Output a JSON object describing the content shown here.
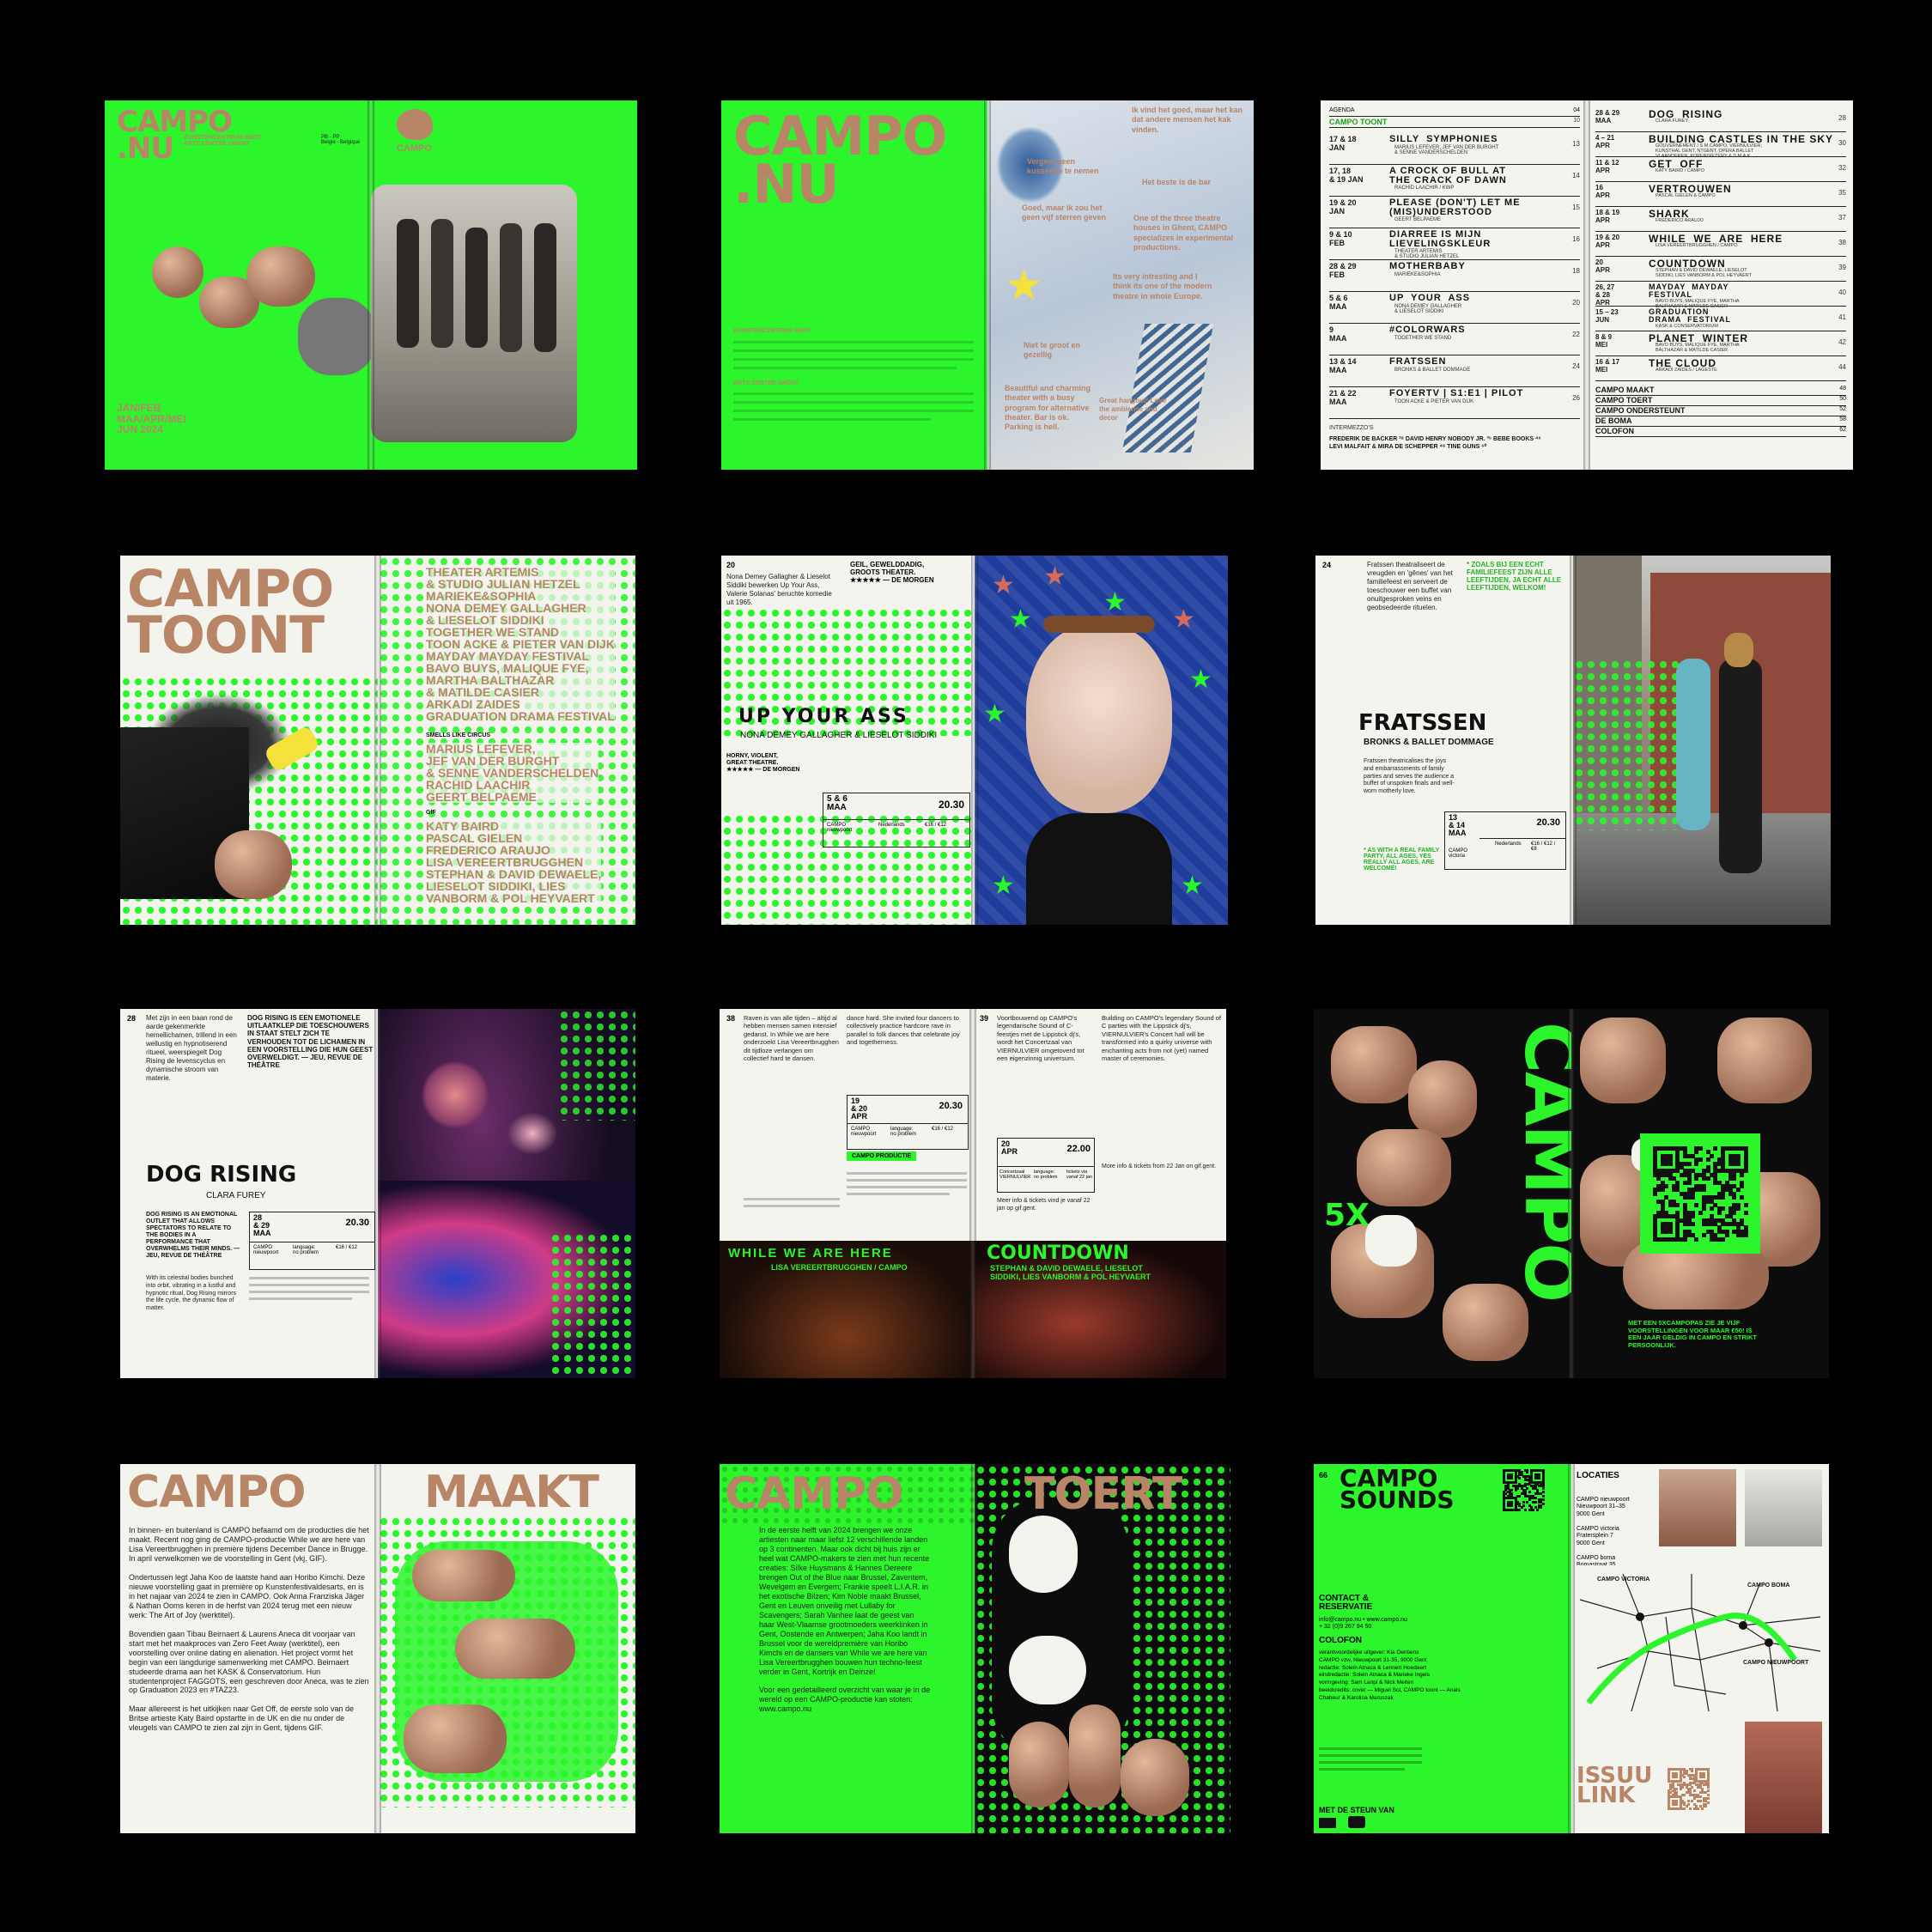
{
  "colors": {
    "green": "#2cf52c",
    "copper": "#b88567",
    "black": "#000000",
    "paper": "#f4f4ef"
  },
  "s1": {
    "logo": "CAMPO\n.NU",
    "tagline": "KUNSTENCENTRUM GENT\nARTS CENTRE GHENT",
    "pb": "PB - PP\nBelgie - Belgique",
    "brand": "CAMPO",
    "dates": "JAN/FEB\nMAA/APR/MEI\nJUN 2024"
  },
  "s2": {
    "logo": "CAMPO\n.NU",
    "reviews": [
      "Ik vind het goed, maar het kan dat andere mensen het kak vinden.",
      "Vergeet geen kussentje te nemen",
      "Het beste is de bar",
      "Goed, maar ik zou het geen vijf sterren geven",
      "One of the three theatre houses in Ghent, CAMPO specializes in experimental productions.",
      "Its very intresting and I think its one of the modern theatre in whole Europe.",
      "Niet te groot en gezellig",
      "Beautiful and charming theater with a busy program for alternative theater. Bar is ok. Parking is hell.",
      "Great hangout! Love the ambience and decor"
    ],
    "intro_title": "KUNSTENCENTRUM GENT",
    "intro_title_en": "ARTS CENTRE GHENT"
  },
  "s3": {
    "toc": [
      {
        "label": "AGENDA",
        "page": "04"
      },
      {
        "label": "CAMPO TOONT",
        "page": "10"
      }
    ],
    "left": [
      {
        "date": "17 & 18\nJAN",
        "title": "SILLY  SYMPHONIES",
        "sub": "MARIUS LEFEVER, JEF VAN DER BURGHT\n& SENNE VANDERSCHELDEN",
        "page": "13"
      },
      {
        "date": "17, 18\n& 19 JAN",
        "title": "A CROCK OF BULL AT\nTHE CRACK OF DAWN",
        "sub": "RACHID LAACHIR / KWP",
        "page": "14"
      },
      {
        "date": "19 & 20\nJAN",
        "title": "PLEASE (DON'T) LET ME\n(MIS)UNDERSTOOD",
        "sub": "GEERT BELPAEME",
        "page": "15"
      },
      {
        "date": "9 & 10\nFEB",
        "title": "DIARREE IS MIJN\nLIEVELINGSKLEUR",
        "sub": "THEATER ARTEMIS\n& STUDIO JULIAN HETZEL",
        "page": "16"
      },
      {
        "date": "28 & 29\nFEB",
        "title": "MOTHERBABY",
        "sub": "MARIEKE&SOPHIA",
        "page": "18"
      },
      {
        "date": "5 & 6\nMAA",
        "title": "UP  YOUR  ASS",
        "sub": "NONA DEMEY GALLAGHER\n& LIESELOT SIDDIKI",
        "page": "20"
      },
      {
        "date": "9\nMAA",
        "title": "#COLORWARS",
        "sub": "TOGETHER WE STAND",
        "page": "22"
      },
      {
        "date": "13 & 14\nMAA",
        "title": "FRATSSEN",
        "sub": "BRONKS & BALLET DOMMAGE",
        "page": "24"
      },
      {
        "date": "21 & 22\nMAA",
        "title": "FOYERTV | S1:E1 | PILOT",
        "sub": "TOON ACKE & PIETER VAN DIJK",
        "page": "26"
      }
    ],
    "intermezzo_label": "INTERMEZZO'S",
    "intermezzo": "FREDERIK DE BACKER ²⁸ DAVID HENRY NOBODY JR. ³⁶ BEBE BOOKS ⁴⁶\nLEVI MALFAIT & MIRA DE SCHEPPER ⁴⁸ TINE GUNS ⁶⁰",
    "right": [
      {
        "date": "28 & 29\nMAA",
        "title": "DOG  RISING",
        "sub": "CLARA FUREY",
        "page": "28"
      },
      {
        "date": "4 – 21\nAPR",
        "title": "BUILDING CASTLES IN THE SKY",
        "sub": "GOUVERNEMENT / S.M.CAMPO, VIERNULVIER,\nKUNSTHAL GENT, NTGENT, OPERA BALLET\nVLAANDEREN, KOPERGIETERY & S.M.A.K.",
        "page": "30"
      },
      {
        "date": "11 & 12\nAPR",
        "title": "GET  OFF",
        "sub": "KATY BAIRD / CAMPO",
        "page": "32"
      },
      {
        "date": "16\nAPR",
        "title": "VERTROUWEN",
        "sub": "PASCAL GIELEN & CAMPO",
        "page": "35"
      },
      {
        "date": "18 & 19\nAPR",
        "title": "SHARK",
        "sub": "FREDERICO ARAUJO",
        "page": "37"
      },
      {
        "date": "19 & 20\nAPR",
        "title": "WHILE  WE  ARE  HERE",
        "sub": "LISA VEREERTBRUGGHEN / CAMPO",
        "page": "38"
      },
      {
        "date": "20\nAPR",
        "title": "COUNTDOWN",
        "sub": "STEPHAN & DAVID DEWAELE, LIESELOT\nSIDDIKI, LIES VANBORM & POL HEYVAERT",
        "page": "39"
      },
      {
        "date": "26, 27\n& 28\nAPR",
        "title": "MAYDAY  MAYDAY\nFESTIVAL",
        "sub": "BAVO BUYS, MALIQUE FYE, MARTHA\nBALTHAZAR & MATILDE CASIER",
        "page": "40"
      },
      {
        "date": "15 – 23\nJUN",
        "title": "GRADUATION\nDRAMA  FESTIVAL",
        "sub": "KASK & CONSERVATORIUM",
        "page": "41"
      },
      {
        "date": "8 & 9\nMEI",
        "title": "PLANET  WINTER",
        "sub": "BAVO BUYS, MALIQUE FYE, MARTHA\nBALTHAZAR & MATILDE CASIER",
        "page": "42"
      },
      {
        "date": "16 & 17\nMEI",
        "title": "THE CLOUD",
        "sub": "ARKADI ZAIDES / LAGESTE",
        "page": "44"
      }
    ],
    "bottom": [
      {
        "label": "CAMPO MAAKT",
        "page": "48"
      },
      {
        "label": "CAMPO TOERT",
        "page": "50"
      },
      {
        "label": "CAMPO ONDERSTEUNT",
        "page": "52"
      },
      {
        "label": "DE BOMA",
        "page": "58"
      },
      {
        "label": "COLOFON",
        "page": "62"
      }
    ]
  },
  "s4": {
    "title": "CAMPO\nTOONT",
    "names": "THEATER ARTEMIS\n& STUDIO JULIAN HETZEL\nMARIEKE&SOPHIA\nNONA DEMEY GALLAGHER\n& LIESELOT SIDDIKI\nTOGETHER WE STAND\nTOON ACKE & PIETER VAN DIJK\nMAYDAY MAYDAY FESTIVAL\nBAVO BUYS, MALIQUE FYE,\nMARTHA BALTHAZAR\n& MATILDE CASIER\nARKADI ZAIDES\nGRADUATION DRAMA FESTIVAL",
    "label1": "SMELLS LIKE CIRCUS",
    "names2": "MARIUS LEFEVER,\nJEF VAN DER BURGHT\n& SENNE VANDERSCHELDEN\nRACHID LAACHIR\nGEERT BELPAEME",
    "label2": "GIF",
    "names3": "KATY BAIRD\nPASCAL GIELEN\nFREDERICO ARAUJO\nLISA VEREERTBRUGGHEN\nSTEPHAN & DAVID DEWAELE,\nLIESELOT SIDDIKI, LIES\nVANBORM & POL HEYVAERT"
  },
  "s5": {
    "page": "20",
    "quote": "GEIL, GEWELDDADIG,\nGROOTS THEATER.\n★★★★★ — DE MORGEN",
    "intro": "Nona Demey Gallagher & Lieselot Siddiki bewerken Up Your Ass, Valerie Solanas' beruchte komedie uit 1965.",
    "title": "UP  YOUR  ASS",
    "sub": "NONA DEMEY GALLAGHER & LIESELOT SIDDIKI",
    "quote2": "HORNY, VIOLENT,\nGREAT THEATRE.\n★★★★★ — DE MORGEN",
    "date": "5 & 6\nMAA",
    "time": "20.30",
    "venue": "CAMPO\nnieuwpoort",
    "lang": "Nederlands",
    "price": "€16 / €12"
  },
  "s6": {
    "page": "24",
    "text": "Fratssen theatraliseert de vreugden en 'gênes' van het familiefeest en serveert de toeschouwer een buffet van onuitgesproken veins en geobsedeerde rituelen.",
    "quote": "* ZOALS BIJ EEN ECHT FAMILIEFEEST ZIJN ALLE LEEFTIJDEN, JA ECHT ALLE LEEFTIJDEN, WELKOM!",
    "title": "FRATSSEN",
    "sub": "BRONKS & BALLET DOMMAGE",
    "en": "Fratssen theatricalises the joys and embarrassments of family parties and serves the audience a buffet of unspoken finals and well-worn motherly love.",
    "date": "13\n& 14\nMAA",
    "time": "20.30",
    "venue": "CAMPO\nvictoria",
    "lang": "Nederlands",
    "price": "€16 / €12 /\n€8",
    "quote_en": "* AS WITH A REAL FAMILY PARTY, ALL AGES, YES REALLY ALL AGES, ARE WELCOME!"
  },
  "s7": {
    "page": "28",
    "text": "Met zijn in een baan rond de aarde gekenmerkte hemellichamen, trillend in een wellustig en hypnotiserend ritueel, weerspiegelt Dog Rising de levenscyclus en dynamische stroom van materie.",
    "quote": "DOG RISING IS EEN EMOTIONELE UITLAATKLEP DIE TOESCHOUWERS IN STAAT STELT ZICH TE VERHOUDEN TOT DE LICHAMEN IN EEN VOORSTELLING DIE HUN GEEST OVERWELDIGT. — JEU, REVUE DE THÉÂTRE",
    "title": "DOG RISING",
    "sub": "CLARA FUREY",
    "quote_en": "DOG RISING IS AN EMOTIONAL OUTLET THAT ALLOWS SPECTATORS TO RELATE TO THE BODIES IN A PERFORMANCE THAT OVERWHELMS THEIR MINDS. — JEU, REVUE DE THÉÂTRE",
    "date": "28\n& 29\nMAA",
    "time": "20.30",
    "venue": "CAMPO\nnieuwpoort",
    "lang": "language:\nno problem",
    "price": "€16 / €12",
    "en": "With its celestial bodies bunched into orbit, vibrating in a lustful and hypnotic ritual, Dog Rising mirrors the life cycle, the dynamic flow of matter."
  },
  "s8": {
    "pageL": "38",
    "pageR": "39",
    "textL": "Raven is van alle tijden – altijd al hebben mensen samen intensief gedanst. In While we are here onderzoekt Lisa Vereertbrugghen dit tijdloze verlangen om collectief hard te dansen.",
    "textL2": "dance hard. She invited four dancers to collectively practice hardcore rave in parallel to folk dances that celebrate joy and togetherness.",
    "date": "19\n& 20\nAPR",
    "time": "20.30",
    "venue": "CAMPO\nnieuwpoort",
    "lang": "language:\nno problem",
    "price": "€16 / €12",
    "badge": "CAMPO PRODUCTIE",
    "title1": "WHILE  WE  ARE  HERE",
    "sub1": "LISA VEREERTBRUGGHEN / CAMPO",
    "textR": "Voortbouwend op CAMPO's legendarische Sound of C-feestjes met de Lippstick dj's, wordt het Concertzaal van VIERNULVIER omgetoverd tot een eigenzinnig universum.",
    "textR2": "Building on CAMPO's legendary Sound of C parties with the Lippstick dj's, VIERNULVIER's Concert hall will be transformed into a quirky universe with enchanting acts from not (yet) named master of ceremonies.",
    "date2": "20\nAPR",
    "time2": "22.00",
    "venue2": "Concertzaal\nVIERNULVIER",
    "lang2": "language:\nno problem",
    "price2": "tickets via\nvanaf 22 jan",
    "info": "Meer info & tickets vind je vanaf 22 jan op gif.gent.",
    "info_en": "More info & tickets from 22 Jan on gif.gent.",
    "title2": "COUNTDOWN",
    "sub2": "STEPHAN & DAVID DEWAELE, LIESELOT\nSIDDIKI, LIES VANBORM & POL HEYVAERT"
  },
  "s9": {
    "vertical": "CAMPO",
    "five": "5X",
    "promo": "MET EEN 5XCAMPOPAS ZIE JE VIJF VOORSTELLINGEN VOOR MAAR €50! IS EEN JAAR GELDIG IN CAMPO EN STRIKT PERSOONLIJK."
  },
  "s10": {
    "title1": "CAMPO",
    "title2": "MAAKT",
    "text": "In binnen- en buitenland is CAMPO befaamd om de producties die het maakt. Recent nog ging de CAMPO-productie While we are here van Lisa Vereertbrugghen in première tijdens December Dance in Brugge. In april verwelkomen we de voorstelling in Gent (vkj. GIF).\n\nOndertussen legt Jaha Koo de laatste hand aan Horibo Kimchi. Deze nieuwe voorstelling gaat in première op Kunstenfestivaldesarts, en is in het najaar van 2024 te zien in CAMPO. Ook Anna Franziska Jäger & Nathan Ooms keren in de herfst van 2024 terug met een nieuw werk: The Art of Joy (werktitel).\n\nBovendien gaan Tibau Beirnaert & Laurens Aneca dit voorjaar van start met het maakproces van Zero Feet Away (werktitel), een voorstelling over online dating en alienation. Het project vormt het begin van een langdurige samenwerking met CAMPO. Beirnaert studeerde drama aan het KASK & Conservatorium. Hun studentenproject FAGGOTS, een geschreven door Aneca, was te zien op Graduation 2023 en #TAZ23.\n\nMaar allereerst is het uitkijken naar Get Off, de eerste solo van de Britse artieste Katy Baird opstartte in de UK en die nu onder de vleugels van CAMPO te zien zal zijn in Gent, tijdens GIF."
  },
  "s11": {
    "title1": "CAMPO",
    "title2": "TOERT",
    "text": "In de eerste helft van 2024 brengen we onze artiesten naar maar liefst 12 verschillende landen op 3 continenten. Maar ook dicht bij huis zijn er heel wat CAMPO-makers te zien met hun recente creaties: Silke Huysmans & Hannes Dereere brengen Out of the Blue naar Brussel, Zaventem, Wevelgem en Evergem; Frankie speelt L.I.A.R. in het exotische Bilzen; Kim Noble maakt Brussel, Gent en Leuven onveilig met Lullaby for Scavengers; Sarah Vanhee laat de geest van haar West-Vlaamse grootmoeders weerklinken in Gent, Oostende en Antwerpen; Jaha Koo landt in Brussel voor de wereldpremière van Horibo Kimchi en de dansers van While we are here van Lisa Vereertbrugghen bouwen hun techno-feest verder in Gent, Kortrijk en Deinze!\n\nVoor een gedetailleerd overzicht van waar je in de wereld op een CAMPO-productie kan stoten: www.campo.nu"
  },
  "s12": {
    "page": "66",
    "title": "CAMPO\nSOUNDS",
    "locaties": "LOCATIES",
    "loc1": "CAMPO nieuwpoort\nNieuwpoort 31–35\n9000 Gent",
    "loc2": "CAMPO victoria\nFratersplein 7\n9000 Gent",
    "loc3": "CAMPO boma\nBomastraat 35\n9000 Gent",
    "contact": "CONTACT &\nRESERVATIE",
    "contact_info": "info@campo.nu • www.campo.nu\n+ 32 (0)9 267 94 50",
    "colofon": "COLOFON",
    "colofon_text": "verantwoordelijke uitgever: Kia Oentiens\nCAMPO vzw, Nieuwpoort 31-35, 9000 Gent\nredactie: Solein Atnaca & Lennert Hoedaert\neindredactie: Solein Atnaca & Marieke Ingels\nvormgeving: Sam Lanpi & Nick Meiten\nbeeldcredits: cover — Miguel Sol, CAMPO toont — Anais Chabeur & Karolina Maruszak",
    "support": "MET DE STEUN VAN",
    "issuu": "ISSUU\nLINK",
    "map": {
      "victoria": "CAMPO VICTORIA",
      "boma": "CAMPO BOMA",
      "nieuwpoort": "CAMPO NIEUWPOORT"
    }
  }
}
